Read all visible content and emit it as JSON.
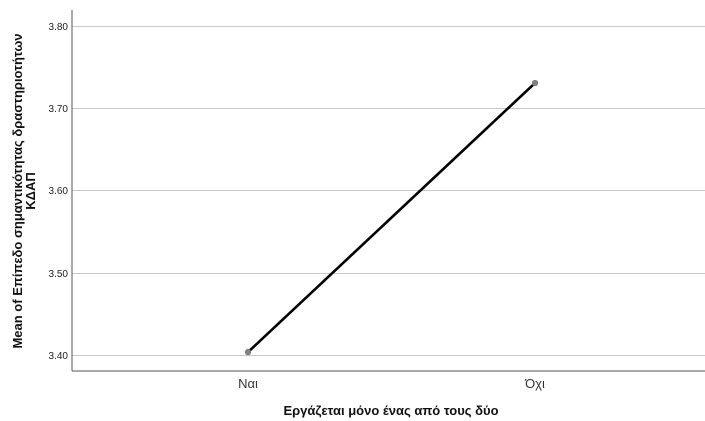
{
  "chart_data": {
    "type": "line",
    "categories": [
      "Ναι",
      "Όχι"
    ],
    "series": [
      {
        "values": [
          3.403,
          3.731
        ]
      }
    ],
    "xlabel": "Εργάζεται μόνο ένας από τους δύο",
    "ylabel_line1": "Mean of Επίπεδο σημαντικότητας δραστηριοτήτων",
    "ylabel_line2": "ΚΔΑΠ",
    "ylim": [
      3.38,
      3.82
    ],
    "yticks": [
      3.4,
      3.5,
      3.6,
      3.7,
      3.8
    ],
    "ytick_labels": [
      "3.40",
      "3.50",
      "3.60",
      "3.70",
      "3.80"
    ],
    "grid": true,
    "line_color": "#000000",
    "marker_color": "#808080",
    "grid_color": "#c8c8c8",
    "axis_color": "#555555"
  }
}
